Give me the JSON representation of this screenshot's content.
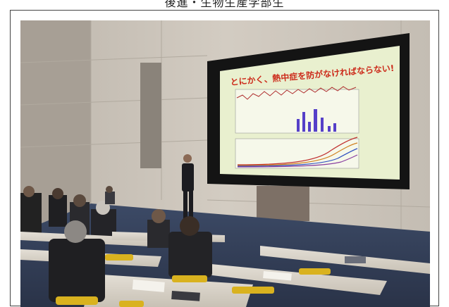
{
  "caption": {
    "text": "後進・生物生産学部生"
  },
  "slide": {
    "title": "とにかく、熱中症を防がなければならない!",
    "background": "#e9f0cf",
    "title_color": "#cc2a1a"
  },
  "icons": {
    "photo": "photograph-icon"
  },
  "colors": {
    "wall": "#c9c2b8",
    "screen_frame": "#141414",
    "desk": "#d8d2c8",
    "chair_yellow": "#d9b21f",
    "jacket": "#1f1f22"
  }
}
